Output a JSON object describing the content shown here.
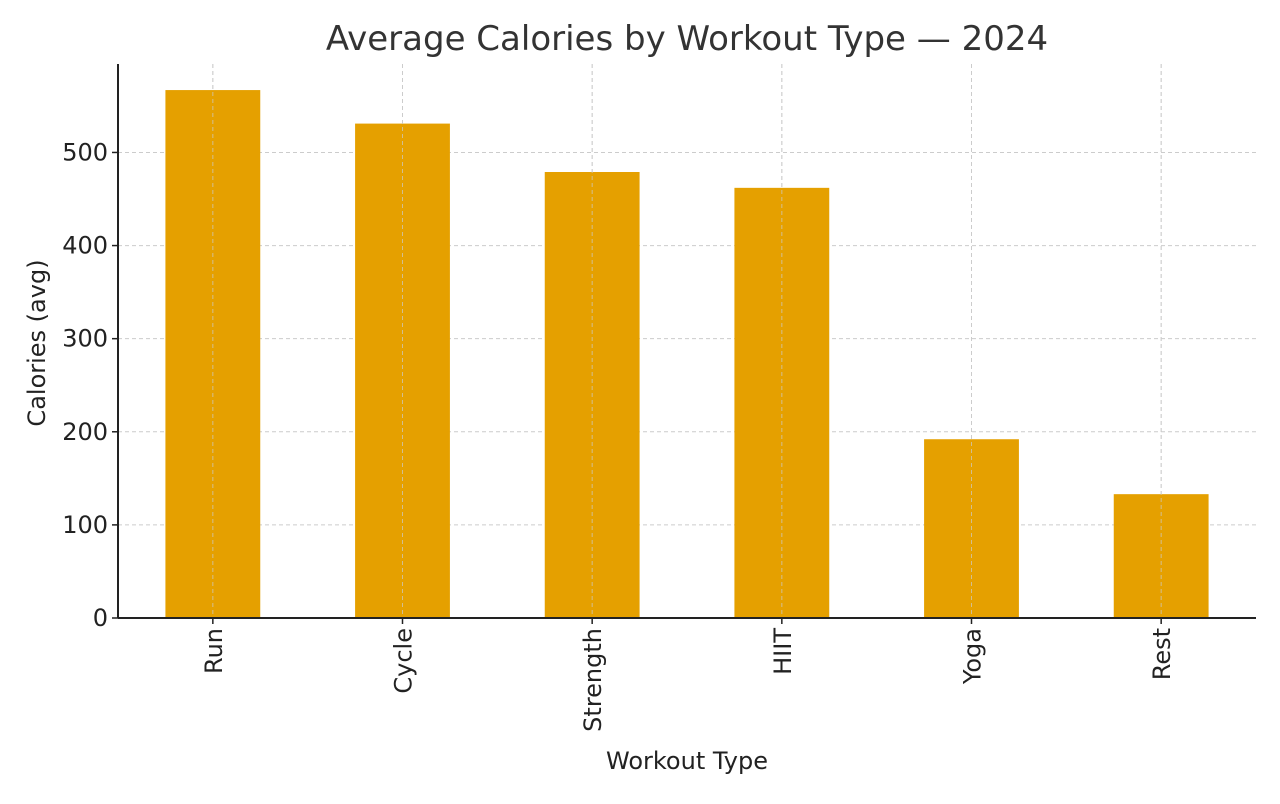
{
  "chart_data": {
    "type": "bar",
    "title": "Average Calories by Workout Type — 2024",
    "xlabel": "Workout Type",
    "ylabel": "Calories (avg)",
    "categories": [
      "Run",
      "Cycle",
      "Strength",
      "HIIT",
      "Yoga",
      "Rest"
    ],
    "values": [
      567,
      531,
      479,
      462,
      192,
      133
    ],
    "yticks": [
      0,
      100,
      200,
      300,
      400,
      500
    ],
    "ylim": [
      0,
      595
    ],
    "grid": true,
    "bar_color": "#E5A000",
    "grid_color": "#cccccc",
    "axis_color": "#222222",
    "text_color": "#222222",
    "title_color": "#333333"
  }
}
